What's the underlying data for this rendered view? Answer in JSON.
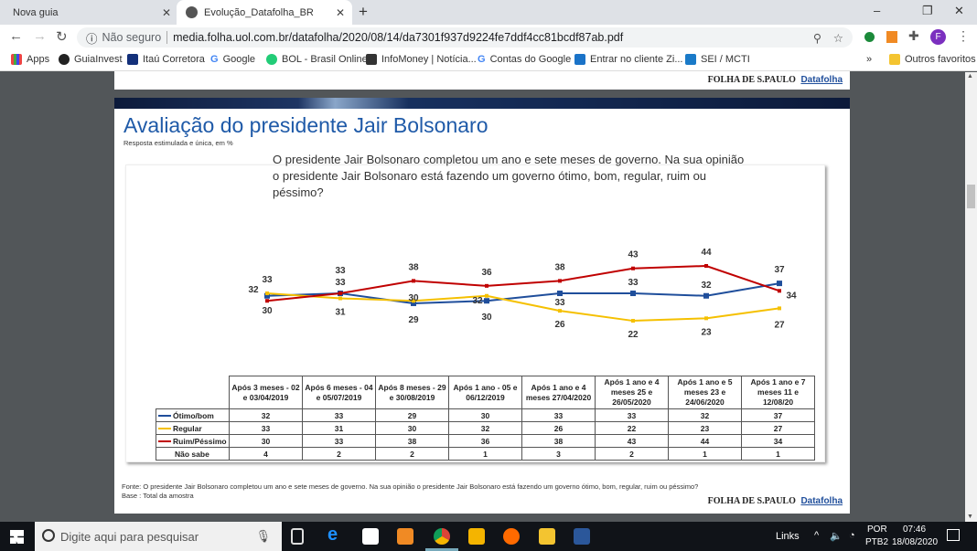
{
  "browser": {
    "tabs": [
      {
        "label": "Nova guia"
      },
      {
        "label": "Evolução_Datafolha_BR"
      }
    ],
    "security": "Não seguro",
    "url": "media.folha.uol.com.br/datafolha/2020/08/14/da7301f937d9224fe7ddf4cc81bcdf87ab.pdf",
    "profile_initial": "F",
    "bookmarks": [
      "Apps",
      "GuiaInvest",
      "Itaú Corretora",
      "Google",
      "BOL - Brasil Online",
      "InfoMoney | Notícia...",
      "Contas do Google",
      "Entrar no cliente Zi...",
      "SEI / MCTI"
    ],
    "other_bookmarks": "Outros favoritos"
  },
  "pdf": {
    "logo_folha": "FOLHA DE S.PAULO",
    "logo_datafolha": "Datafolha",
    "title": "Avaliação do presidente Jair Bolsonaro",
    "subtitle": "Resposta estimulada e única, em %",
    "question": "O presidente Jair Bolsonaro completou um ano e sete meses de governo. Na sua opinião o presidente Jair Bolsonaro está fazendo um governo ótimo, bom, regular, ruim ou péssimo?",
    "footnote1": "Fonte: O presidente Jair Bolsonaro completou um ano e sete meses de governo. Na sua opinião o presidente Jair Bolsonaro está fazendo um governo ótimo, bom, regular, ruim ou péssimo?",
    "footnote2": "Base : Total da amostra"
  },
  "chart_data": {
    "type": "line",
    "categories": [
      "Após 3 meses - 02 e 03/04/2019",
      "Após 6 meses - 04 e 05/07/2019",
      "Após 8 meses - 29 e 30/08/2019",
      "Após 1 ano - 05 e 06/12/2019",
      "Após 1 ano e 4 meses 27/04/2020",
      "Após 1 ano e 4 meses 25 e 26/05/2020",
      "Após 1 ano e 5 meses 23 e 24/06/2020",
      "Após 1 ano e 7 meses 11 e 12/08/20"
    ],
    "series": [
      {
        "name": "Ótimo/bom",
        "color": "#1f4e9b",
        "values": [
          32,
          33,
          29,
          30,
          33,
          33,
          32,
          37
        ]
      },
      {
        "name": "Regular",
        "color": "#f5c000",
        "values": [
          33,
          31,
          30,
          32,
          26,
          22,
          23,
          27
        ]
      },
      {
        "name": "Ruim/Péssimo",
        "color": "#c00000",
        "values": [
          30,
          33,
          38,
          36,
          38,
          43,
          44,
          34
        ]
      },
      {
        "name": "Não sabe",
        "color": "",
        "values": [
          4,
          2,
          2,
          1,
          3,
          2,
          1,
          1
        ]
      }
    ],
    "ylim": [
      20,
      46
    ]
  },
  "taskbar": {
    "search_placeholder": "Digite aqui para pesquisar",
    "links": "Links",
    "lang1": "POR",
    "lang2": "PTB2",
    "time": "07:46",
    "date": "18/08/2020"
  }
}
